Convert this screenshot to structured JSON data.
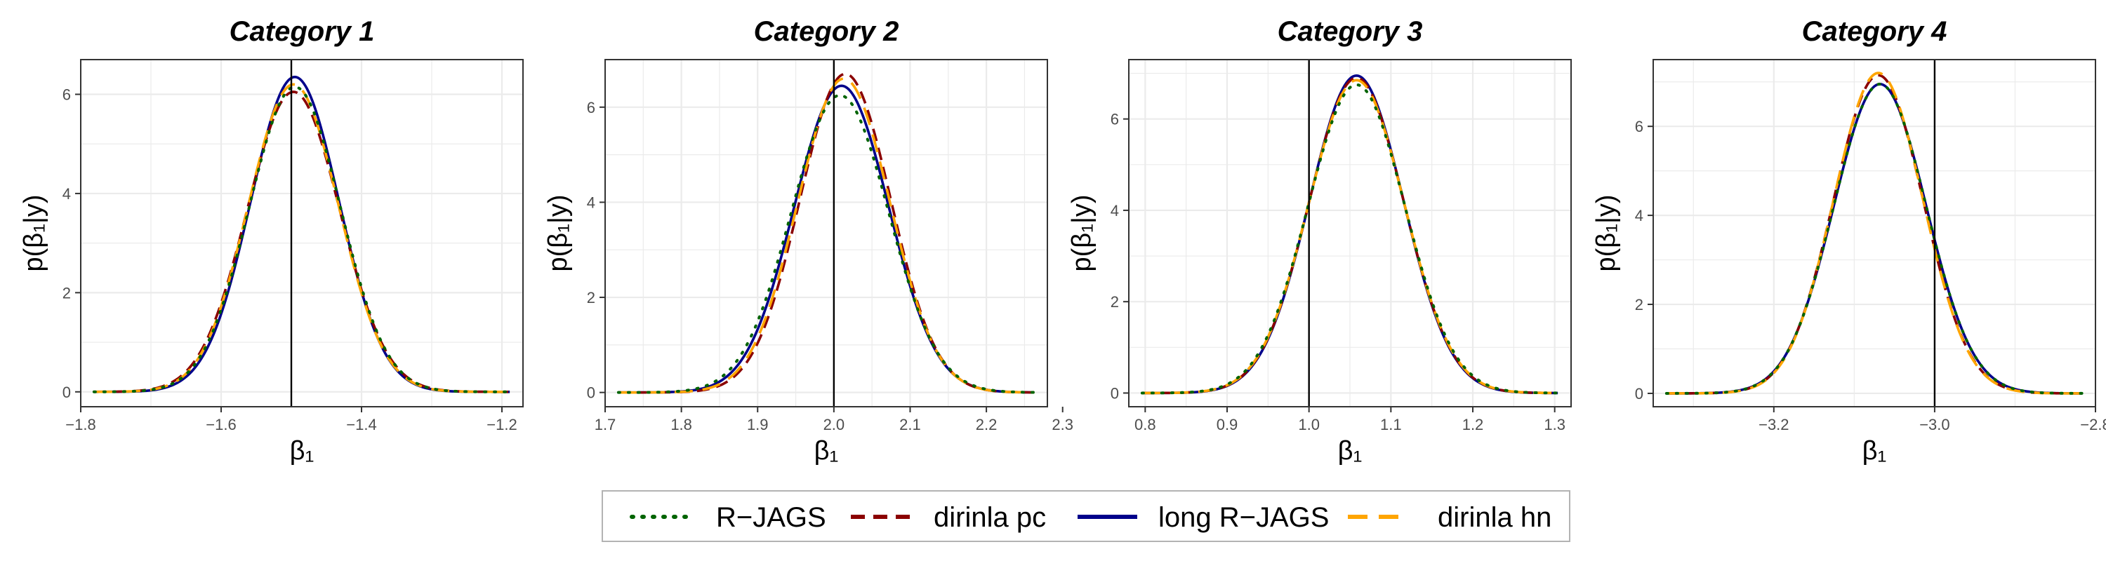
{
  "chart_data": [
    {
      "type": "line",
      "title": "Category 1",
      "xlabel": "β₁",
      "ylabel": "p(β₁|y)",
      "xlim": [
        -1.8,
        -1.17
      ],
      "ylim": [
        -0.3,
        6.7
      ],
      "xticks": [
        -1.8,
        -1.6,
        -1.4,
        -1.2
      ],
      "xtick_labels": [
        "−1.8",
        "−1.6",
        "−1.4",
        "−1.2"
      ],
      "yticks": [
        0,
        2,
        4,
        6
      ],
      "ytick_labels": [
        "0",
        "2",
        "4",
        "6"
      ],
      "reference_x": -1.5,
      "series": [
        {
          "name": "R−JAGS",
          "mean": -1.495,
          "peak": 6.15
        },
        {
          "name": "dirinla pc",
          "mean": -1.497,
          "peak": 6.05
        },
        {
          "name": "long R−JAGS",
          "mean": -1.495,
          "peak": 6.35
        },
        {
          "name": "dirinla hn",
          "mean": -1.497,
          "peak": 6.2
        }
      ]
    },
    {
      "type": "line",
      "title": "Category 2",
      "xlabel": "β₁",
      "ylabel": "p(β₁|y)",
      "xlim": [
        1.7,
        2.28
      ],
      "ylim": [
        -0.3,
        7.0
      ],
      "xticks": [
        1.7,
        1.8,
        1.9,
        2.0,
        2.1,
        2.2,
        2.3
      ],
      "xtick_labels": [
        "1.7",
        "1.8",
        "1.9",
        "2.0",
        "2.1",
        "2.2",
        "2.3"
      ],
      "yticks": [
        0,
        2,
        4,
        6
      ],
      "ytick_labels": [
        "0",
        "2",
        "4",
        "6"
      ],
      "reference_x": 2.0,
      "series": [
        {
          "name": "R−JAGS",
          "mean": 2.008,
          "peak": 6.25
        },
        {
          "name": "dirinla pc",
          "mean": 2.015,
          "peak": 6.7
        },
        {
          "name": "long R−JAGS",
          "mean": 2.01,
          "peak": 6.45
        },
        {
          "name": "dirinla hn",
          "mean": 2.013,
          "peak": 6.6
        }
      ]
    },
    {
      "type": "line",
      "title": "Category 3",
      "xlabel": "β₁",
      "ylabel": "p(β₁|y)",
      "xlim": [
        0.78,
        1.32
      ],
      "ylim": [
        -0.3,
        7.3
      ],
      "xticks": [
        0.8,
        0.9,
        1.0,
        1.1,
        1.2,
        1.3
      ],
      "xtick_labels": [
        "0.8",
        "0.9",
        "1.0",
        "1.1",
        "1.2",
        "1.3"
      ],
      "yticks": [
        0,
        2,
        4,
        6
      ],
      "ytick_labels": [
        "0",
        "2",
        "4",
        "6"
      ],
      "reference_x": 1.0,
      "series": [
        {
          "name": "R−JAGS",
          "mean": 1.058,
          "peak": 6.75
        },
        {
          "name": "dirinla pc",
          "mean": 1.058,
          "peak": 6.9
        },
        {
          "name": "long R−JAGS",
          "mean": 1.058,
          "peak": 6.95
        },
        {
          "name": "dirinla hn",
          "mean": 1.058,
          "peak": 6.85
        }
      ]
    },
    {
      "type": "line",
      "title": "Category 4",
      "xlabel": "β₁",
      "ylabel": "p(β₁|y)",
      "xlim": [
        -3.35,
        -2.8
      ],
      "ylim": [
        -0.3,
        7.5
      ],
      "xticks": [
        -3.2,
        -3.0,
        -2.8
      ],
      "xtick_labels": [
        "−3.2",
        "−3.0",
        "−2.8"
      ],
      "yticks": [
        0,
        2,
        4,
        6
      ],
      "ytick_labels": [
        "0",
        "2",
        "4",
        "6"
      ],
      "reference_x": -3.0,
      "series": [
        {
          "name": "R−JAGS",
          "mean": -3.068,
          "peak": 6.95
        },
        {
          "name": "dirinla pc",
          "mean": -3.07,
          "peak": 7.15
        },
        {
          "name": "long R−JAGS",
          "mean": -3.068,
          "peak": 6.95
        },
        {
          "name": "dirinla hn",
          "mean": -3.07,
          "peak": 7.2
        }
      ]
    }
  ],
  "legend": {
    "placement": "bottom",
    "items": [
      {
        "label": "R−JAGS",
        "color": "#006400",
        "style": "dotted"
      },
      {
        "label": "dirinla pc",
        "color": "#8B0000",
        "style": "dashed"
      },
      {
        "label": "long R−JAGS",
        "color": "#00008B",
        "style": "solid"
      },
      {
        "label": "dirinla hn",
        "color": "#FFA500",
        "style": "longdash"
      }
    ]
  },
  "colors": {
    "grid": "#ebebeb",
    "panel_border": "#333333",
    "reference_line": "#000000",
    "tick_text": "#4d4d4d"
  }
}
